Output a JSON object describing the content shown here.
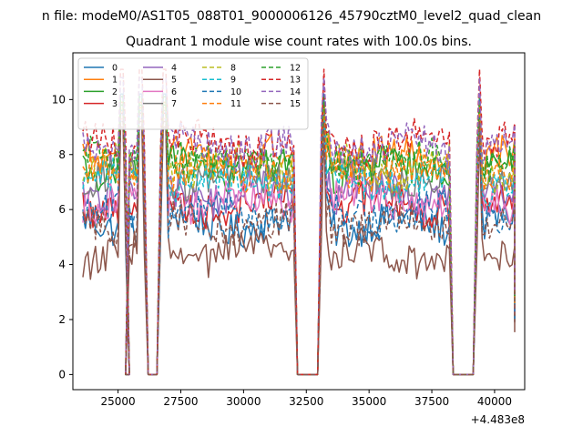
{
  "chart_data": {
    "type": "line",
    "suptitle": "n file: modeM0/AS1T05_088T01_9000006126_45790cztM0_level2_quad_clean",
    "title": "Quadrant 1 module wise count rates with 100.0s bins.",
    "xlabel": "",
    "ylabel": "",
    "x_offset_label": "+4.483e8",
    "xlim": [
      23200,
      41200
    ],
    "ylim": [
      -0.55,
      11.7
    ],
    "xticks": [
      25000,
      27500,
      30000,
      32500,
      35000,
      37500,
      40000
    ],
    "xtick_labels": [
      "25000",
      "27500",
      "30000",
      "32500",
      "35000",
      "37500",
      "40000"
    ],
    "yticks": [
      0,
      2,
      4,
      6,
      8,
      10
    ],
    "ytick_labels": [
      "0",
      "2",
      "4",
      "6",
      "8",
      "10"
    ],
    "grid": false,
    "legend": {
      "position": "top-left",
      "columns": 4
    },
    "segments": [
      {
        "start": 23600,
        "end": 25300,
        "peak": 25150
      },
      {
        "start": 25450,
        "end": 26050,
        "peak": 25900
      },
      {
        "start": 26700,
        "end": 32000,
        "peak": 26850
      },
      {
        "start": 33100,
        "end": 38200,
        "peak": 33200
      },
      {
        "start": 39300,
        "end": 40800,
        "peak": 39400
      }
    ],
    "gaps": [
      [
        26250,
        26650
      ],
      [
        32250,
        32900
      ],
      [
        38400,
        39100
      ]
    ],
    "series": [
      {
        "name": "0",
        "color": "#1f77b4",
        "style": "solid",
        "level": 5.5,
        "peak": 10.2
      },
      {
        "name": "1",
        "color": "#ff7f0e",
        "style": "solid",
        "level": 7.9,
        "peak": 9.9
      },
      {
        "name": "2",
        "color": "#2ca02c",
        "style": "solid",
        "level": 7.5,
        "peak": 9.8
      },
      {
        "name": "3",
        "color": "#d62728",
        "style": "solid",
        "level": 6.2,
        "peak": 9.5
      },
      {
        "name": "4",
        "color": "#9467bd",
        "style": "solid",
        "level": 6.6,
        "peak": 9.6
      },
      {
        "name": "5",
        "color": "#8c564b",
        "style": "solid",
        "level": 4.4,
        "peak": 9.0
      },
      {
        "name": "6",
        "color": "#e377c2",
        "style": "solid",
        "level": 6.3,
        "peak": 9.3
      },
      {
        "name": "7",
        "color": "#7f7f7f",
        "style": "solid",
        "level": 7.2,
        "peak": 9.6
      },
      {
        "name": "8",
        "color": "#bcbd22",
        "style": "dashed",
        "level": 7.5,
        "peak": 9.7
      },
      {
        "name": "9",
        "color": "#17becf",
        "style": "dashed",
        "level": 7.0,
        "peak": 9.6
      },
      {
        "name": "10",
        "color": "#1f77b4",
        "style": "dashed",
        "level": 5.8,
        "peak": 9.5
      },
      {
        "name": "11",
        "color": "#ff7f0e",
        "style": "dashed",
        "level": 7.4,
        "peak": 9.7
      },
      {
        "name": "12",
        "color": "#2ca02c",
        "style": "dashed",
        "level": 7.8,
        "peak": 10.1
      },
      {
        "name": "13",
        "color": "#d62728",
        "style": "dashed",
        "level": 8.4,
        "peak": 11.1
      },
      {
        "name": "14",
        "color": "#9467bd",
        "style": "dashed",
        "level": 8.3,
        "peak": 10.8
      },
      {
        "name": "15",
        "color": "#8c564b",
        "style": "dashed",
        "level": 5.4,
        "peak": 9.2
      }
    ]
  }
}
